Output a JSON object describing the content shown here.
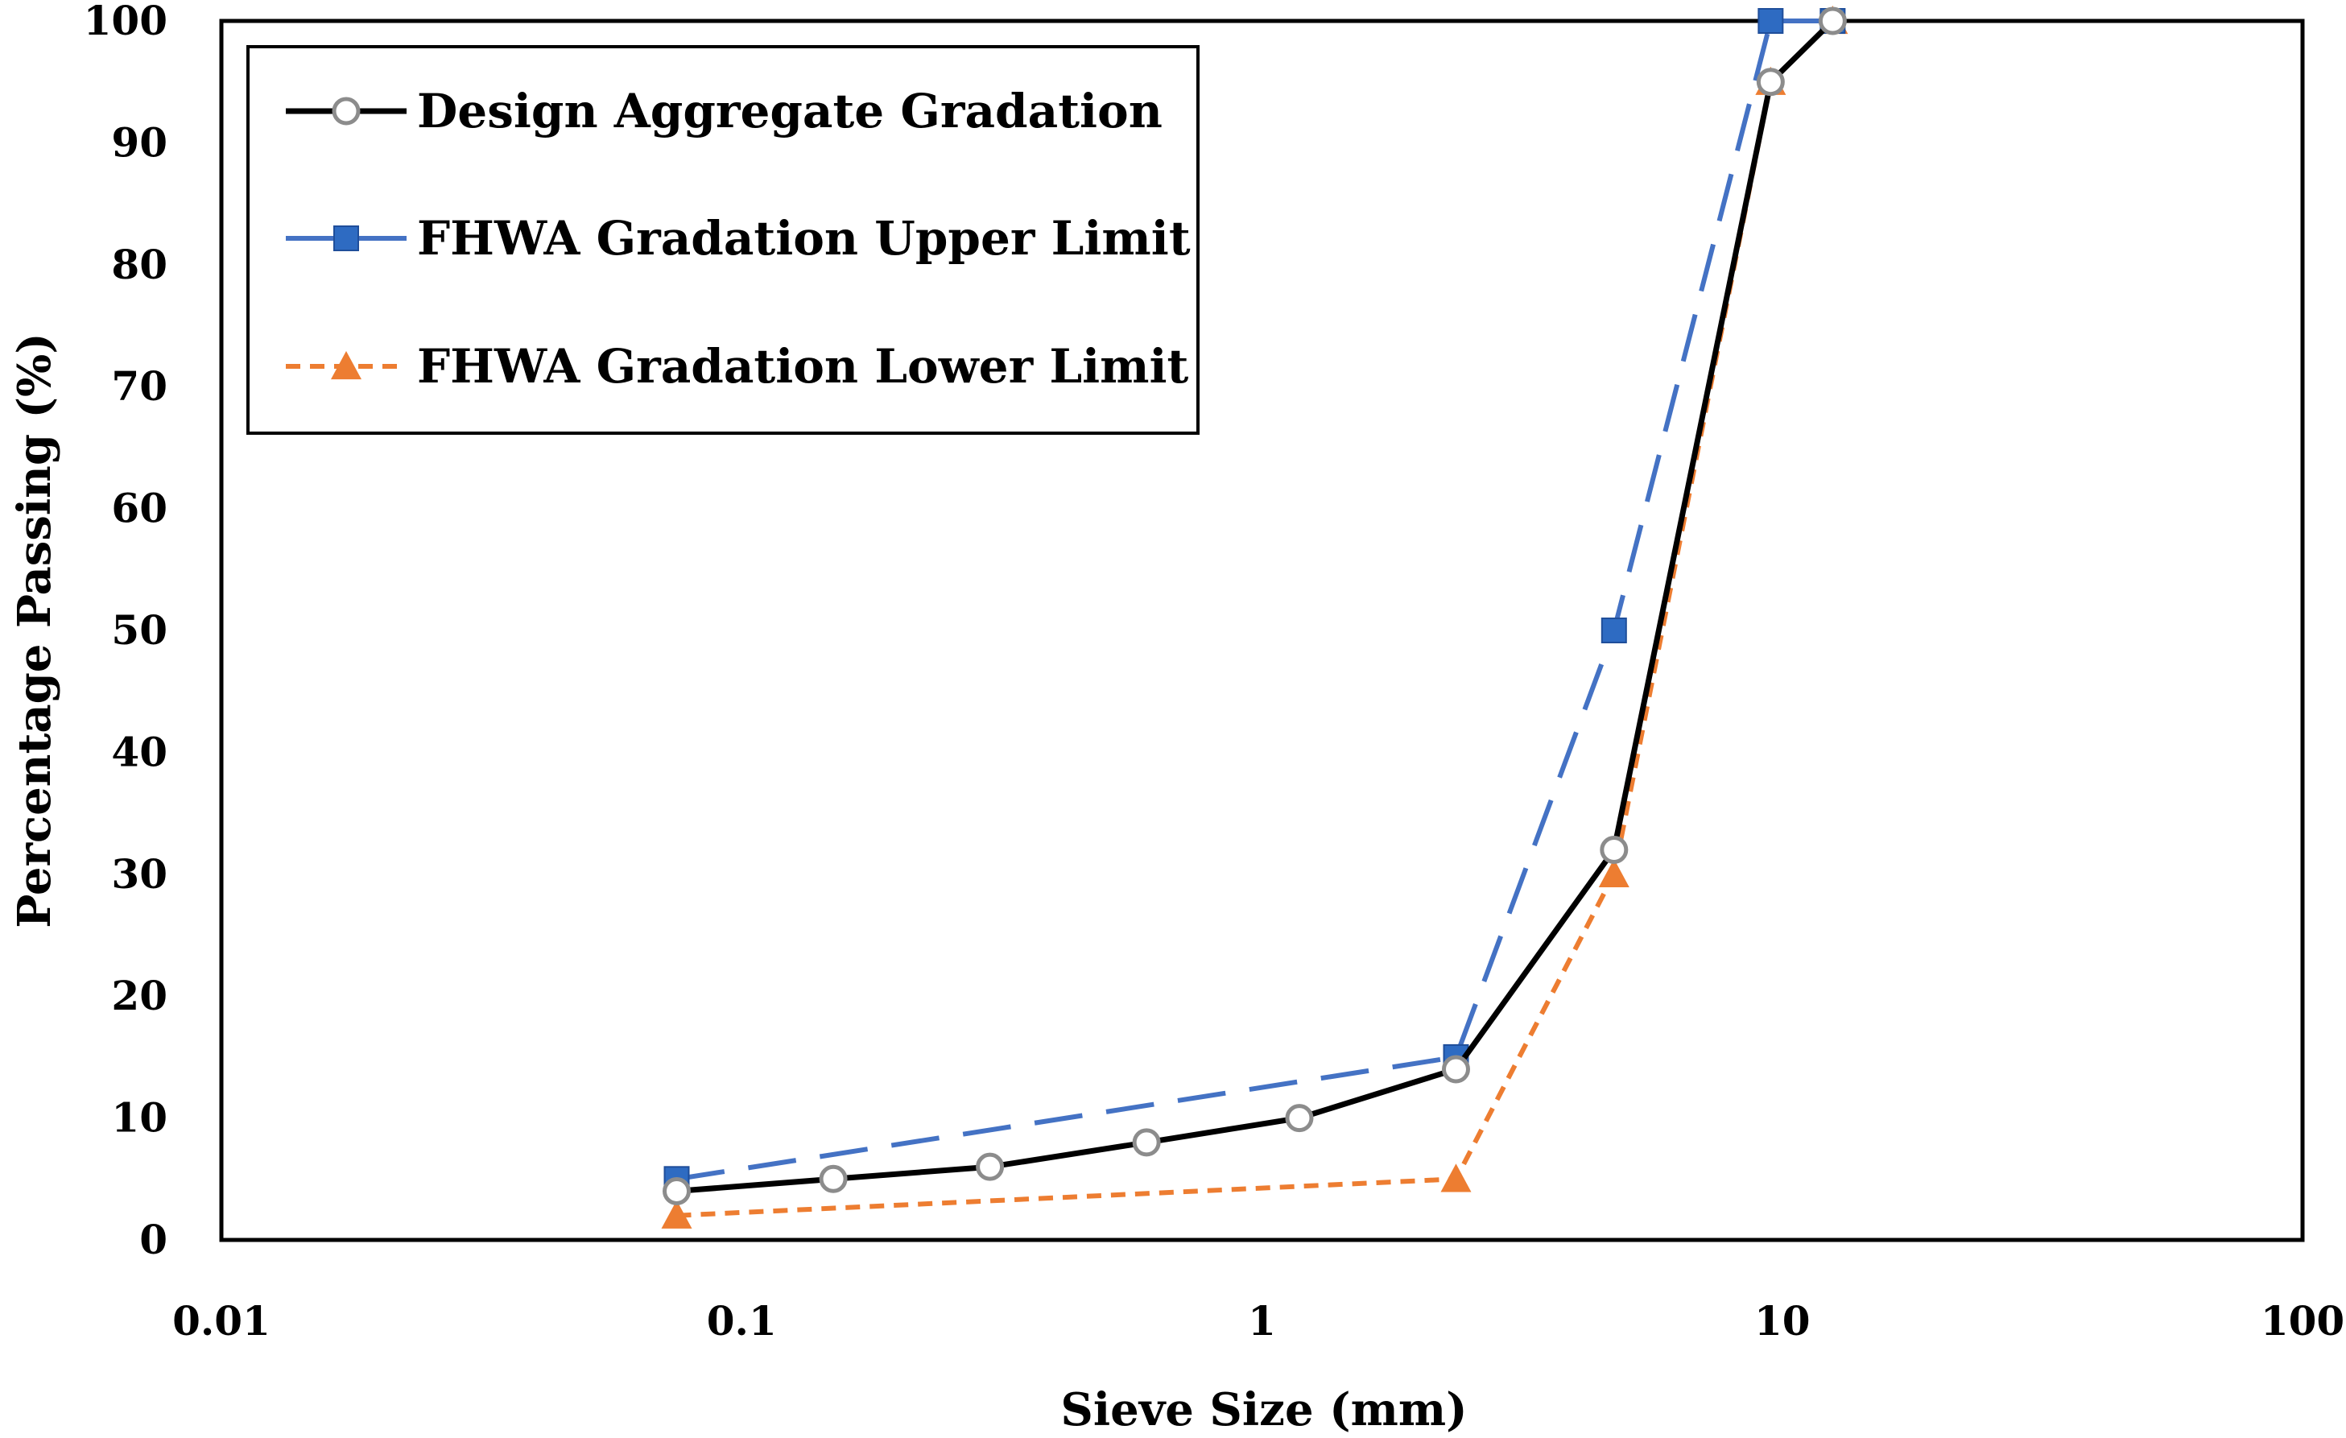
{
  "chart_data": {
    "type": "line",
    "x_scale": "log",
    "xlabel": "Sieve Size (mm)",
    "ylabel": "Percentage Passing (%)",
    "xlim": [
      0.01,
      100
    ],
    "ylim": [
      0,
      100
    ],
    "x_ticks": [
      0.01,
      0.1,
      1,
      10,
      100
    ],
    "x_tick_labels": [
      "0.01",
      "0.1",
      "1",
      "10",
      "100"
    ],
    "y_ticks": [
      0,
      10,
      20,
      30,
      40,
      50,
      60,
      70,
      80,
      90,
      100
    ],
    "y_tick_labels": [
      "0",
      "10",
      "20",
      "30",
      "40",
      "50",
      "60",
      "70",
      "80",
      "90",
      "100"
    ],
    "legend_position": "top-left",
    "series": [
      {
        "name": "Design Aggregate Gradation",
        "color": "#000000",
        "marker_color": "#8c8c8c",
        "marker": "circle",
        "line_style": "solid",
        "x": [
          0.075,
          0.15,
          0.3,
          0.6,
          1.18,
          2.36,
          4.75,
          9.5,
          12.5
        ],
        "y": [
          4,
          5,
          6,
          8,
          10,
          14,
          32,
          95,
          100
        ]
      },
      {
        "name": "FHWA Gradation Upper Limit",
        "color": "#4472c4",
        "marker_color": "#2e6bc2",
        "marker": "square",
        "line_style": "dashed",
        "x": [
          0.075,
          2.36,
          4.75,
          9.5,
          12.5
        ],
        "y": [
          5,
          15,
          50,
          100,
          100
        ]
      },
      {
        "name": "FHWA Gradation Lower Limit",
        "color": "#ed7d31",
        "marker_color": "#ed7d31",
        "marker": "triangle",
        "line_style": "dotted",
        "x": [
          0.075,
          2.36,
          4.75,
          9.5,
          12.5
        ],
        "y": [
          2,
          5,
          30,
          95,
          100
        ]
      }
    ]
  }
}
